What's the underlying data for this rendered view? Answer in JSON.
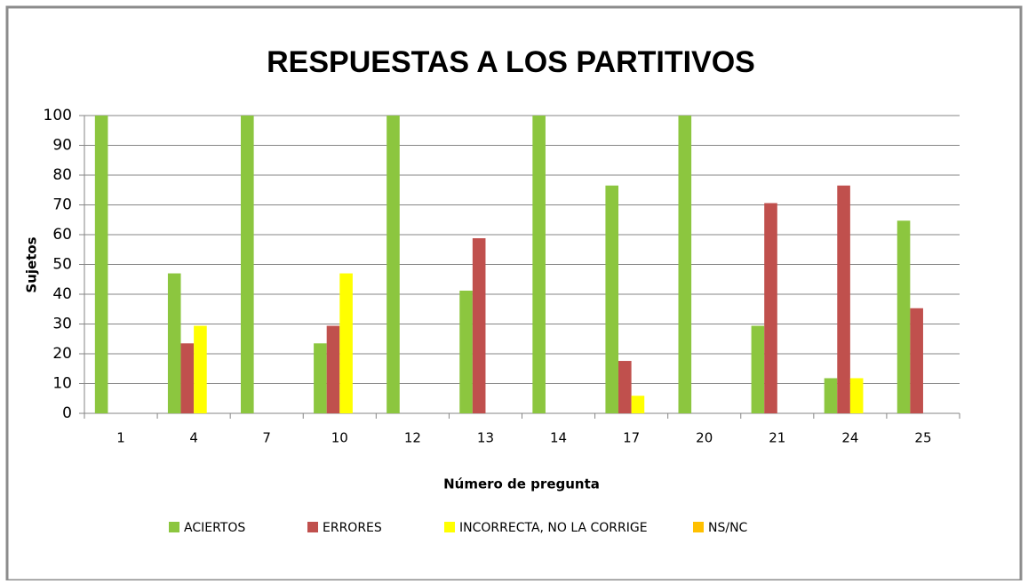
{
  "chart_data": {
    "type": "bar",
    "title": "RESPUESTAS A LOS PARTITIVOS",
    "x_label": "Número de pregunta",
    "y_label": "Sujetos",
    "categories": [
      "1",
      "4",
      "7",
      "10",
      "12",
      "13",
      "14",
      "17",
      "20",
      "21",
      "24",
      "25"
    ],
    "series": [
      {
        "name": "ACIERTOS",
        "color": "#8cc63f",
        "values": [
          100,
          47,
          100,
          23.5,
          100,
          41.2,
          100,
          76.5,
          100,
          29.4,
          11.8,
          64.7
        ]
      },
      {
        "name": "ERRORES",
        "color": "#c0504d",
        "values": [
          0,
          23.5,
          0,
          29.4,
          0,
          58.8,
          0,
          17.6,
          0,
          70.6,
          76.5,
          35.3
        ]
      },
      {
        "name": "INCORRECTA, NO LA CORRIGE",
        "color": "#ffff00",
        "values": [
          0,
          29.4,
          0,
          47,
          0,
          0,
          0,
          5.9,
          0,
          0,
          11.8,
          0
        ]
      },
      {
        "name": "NS/NC",
        "color": "#ffc000",
        "values": [
          0,
          0,
          0,
          0,
          0,
          0,
          0,
          0,
          0,
          0,
          0,
          0
        ]
      }
    ],
    "ylim": [
      0,
      100
    ],
    "yticks": [
      0,
      10,
      20,
      30,
      40,
      50,
      60,
      70,
      80,
      90,
      100
    ],
    "grid": true,
    "legend": "bottom"
  }
}
